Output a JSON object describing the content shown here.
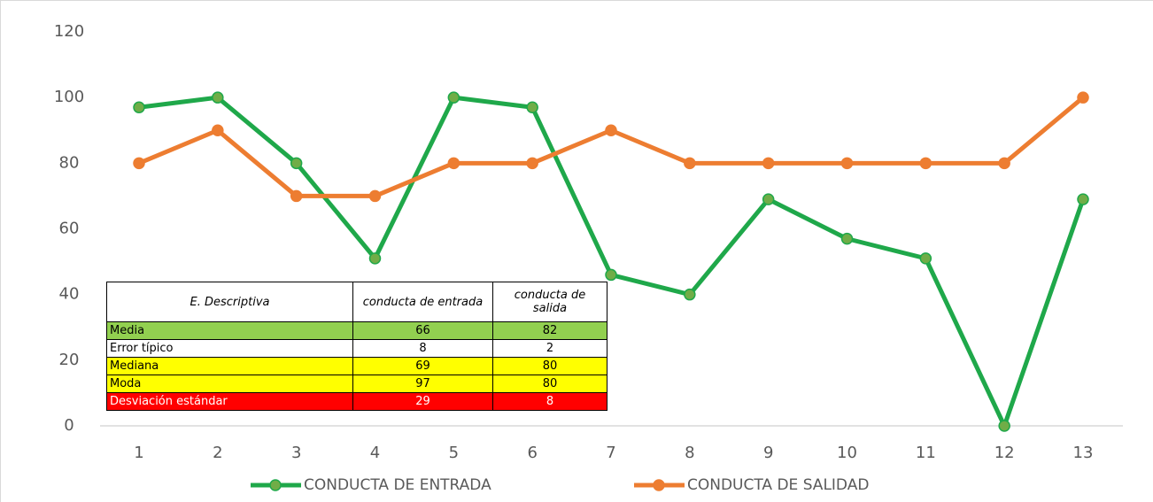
{
  "chart_data": {
    "type": "line",
    "categories": [
      "1",
      "2",
      "3",
      "4",
      "5",
      "6",
      "7",
      "8",
      "9",
      "10",
      "11",
      "12",
      "13"
    ],
    "series": [
      {
        "name": "CONDUCTA DE ENTRADA",
        "color": "#1fa84a",
        "marker_color": "#70ad47",
        "values": [
          97,
          100,
          80,
          51,
          100,
          97,
          46,
          40,
          69,
          57,
          51,
          0,
          69
        ]
      },
      {
        "name": "CONDUCTA DE SALIDAD",
        "color": "#ed7d31",
        "marker_color": "#ed7d31",
        "values": [
          80,
          90,
          70,
          70,
          80,
          80,
          90,
          80,
          80,
          80,
          80,
          80,
          100
        ]
      }
    ],
    "ylim": [
      0,
      120
    ],
    "yticks": [
      0,
      20,
      40,
      60,
      80,
      100,
      120
    ],
    "grid": false,
    "legend": "bottom"
  },
  "table": {
    "header": [
      "E. Descriptiva",
      "conducta de entrada",
      "conducta de salida"
    ],
    "rows": [
      [
        "Media",
        "66",
        "82"
      ],
      [
        "Error típico",
        "8",
        "2"
      ],
      [
        "Mediana",
        "69",
        "80"
      ],
      [
        "Moda",
        "97",
        "80"
      ],
      [
        "Desviación estándar",
        "29",
        "8"
      ]
    ]
  }
}
